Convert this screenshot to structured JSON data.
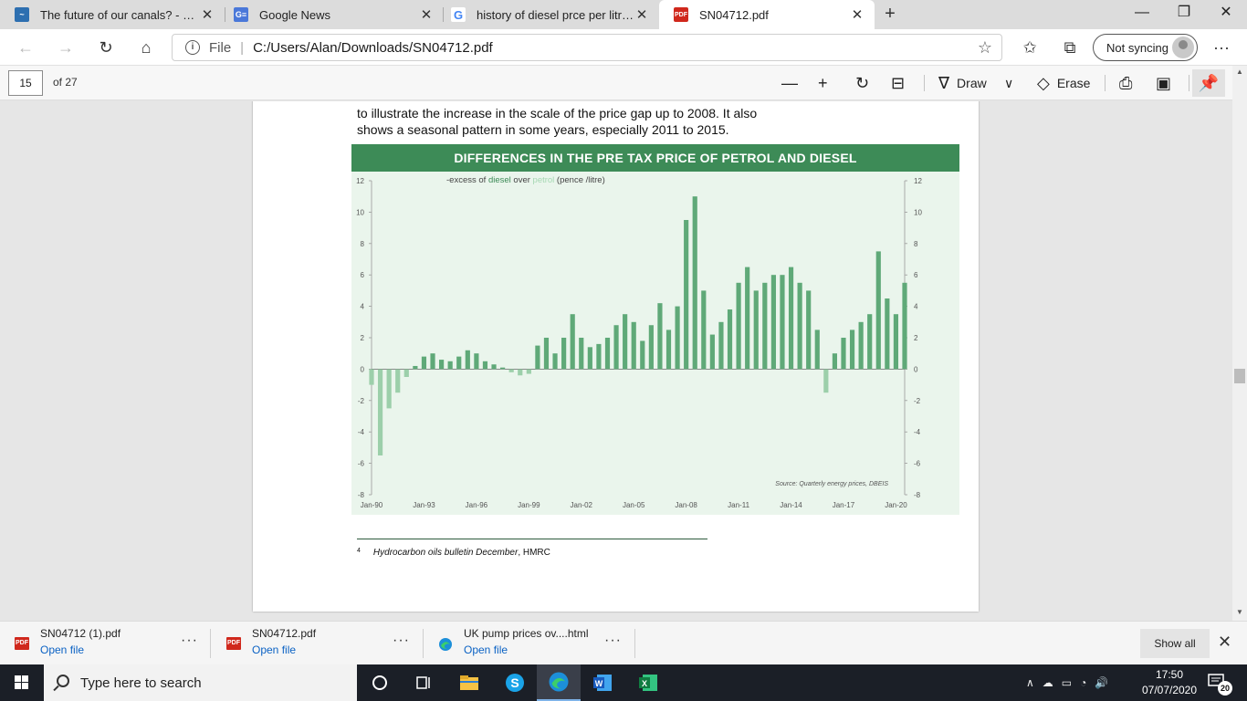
{
  "browser": {
    "tabs": [
      {
        "title": "The future of our canals? - Page",
        "icon": "canal-site-icon",
        "active": false
      },
      {
        "title": "Google News",
        "icon": "google-news-icon",
        "active": false
      },
      {
        "title": "history of diesel prce per litre - G",
        "icon": "google-icon",
        "active": false
      },
      {
        "title": "SN04712.pdf",
        "icon": "pdf-icon",
        "active": true
      }
    ],
    "address": {
      "scheme": "File",
      "url": "C:/Users/Alan/Downloads/SN04712.pdf"
    },
    "profile": {
      "label": "Not syncing"
    }
  },
  "pdf_toolbar": {
    "page_current": "15",
    "page_total": "of 27",
    "draw_label": "Draw",
    "erase_label": "Erase"
  },
  "document": {
    "body_text": "to illustrate the increase in the scale of the price gap up to 2008. It also\nshows a seasonal pattern in some years, especially 2011 to 2015.",
    "chart_title": "DIFFERENCES  IN THE PRE TAX PRICE OF PETROL AND DIESEL",
    "footnote_marker": "4",
    "footnote_italic": "Hydrocarbon oils bulletin December",
    "footnote_rest": ", HMRC"
  },
  "chart_data": {
    "type": "bar",
    "title": "DIFFERENCES  IN THE PRE TAX PRICE OF PETROL AND DIESEL",
    "subtitle_parts": [
      "-excess of ",
      "diesel",
      " over ",
      "petrol",
      " (pence /litre)"
    ],
    "source": "Source: Quarterly energy prices, DBEIS",
    "x_tick_labels": [
      "Jan-90",
      "Jan-93",
      "Jan-96",
      "Jan-99",
      "Jan-02",
      "Jan-05",
      "Jan-08",
      "Jan-11",
      "Jan-14",
      "Jan-17",
      "Jan-20"
    ],
    "y_ticks": [
      12,
      10,
      8,
      6,
      4,
      2,
      0,
      -2,
      -4,
      -6,
      -8
    ],
    "ylim": [
      -8,
      12
    ],
    "x_range": [
      1990.0,
      2020.5
    ],
    "colors": {
      "diesel": "#3d8b57",
      "petrol": "#a6d8b3",
      "positive_bar": "#5fa978",
      "negative_bar": "#9ccfaa"
    },
    "series": [
      {
        "x": [
          1990,
          1990.5,
          1991,
          1991.5,
          1992,
          1992.5,
          1993,
          1993.5,
          1994,
          1994.5,
          1995,
          1995.5,
          1996,
          1996.5,
          1997,
          1997.5,
          1998,
          1998.5,
          1999,
          1999.5,
          2000,
          2000.5,
          2001,
          2001.5,
          2002,
          2002.5,
          2003,
          2003.5,
          2004,
          2004.5,
          2005,
          2005.5,
          2006,
          2006.5,
          2007,
          2007.5,
          2008,
          2008.5,
          2009,
          2009.5,
          2010,
          2010.5,
          2011,
          2011.5,
          2012,
          2012.5,
          2013,
          2013.5,
          2014,
          2014.5,
          2015,
          2015.5,
          2016,
          2016.5,
          2017,
          2017.5,
          2018,
          2018.5,
          2019,
          2019.5,
          2020,
          2020.5
        ],
        "values": [
          -1.0,
          -5.5,
          -2.5,
          -1.5,
          -0.5,
          0.2,
          0.8,
          1.0,
          0.6,
          0.5,
          0.8,
          1.2,
          1.0,
          0.5,
          0.3,
          0.1,
          -0.2,
          -0.4,
          -0.3,
          1.5,
          2.0,
          1.0,
          2.0,
          3.5,
          2.0,
          1.4,
          1.6,
          2.0,
          2.8,
          3.5,
          3.0,
          1.8,
          2.8,
          4.2,
          2.5,
          4.0,
          9.5,
          11.0,
          5.0,
          2.2,
          3.0,
          3.8,
          5.5,
          6.5,
          5.0,
          5.5,
          6.0,
          6.0,
          6.5,
          5.5,
          5.0,
          2.5,
          -1.5,
          1.0,
          2.0,
          2.5,
          3.0,
          3.5,
          7.5,
          4.5,
          3.5,
          5.5
        ]
      }
    ]
  },
  "downloads": [
    {
      "name": "SN04712 (1).pdf",
      "action": "Open file",
      "icon": "pdf-icon"
    },
    {
      "name": "SN04712.pdf",
      "action": "Open file",
      "icon": "pdf-icon"
    },
    {
      "name": "UK pump prices ov....html",
      "action": "Open file",
      "icon": "edge-icon"
    }
  ],
  "downloads_show_all": "Show all",
  "taskbar": {
    "search_placeholder": "Type here to search",
    "time": "17:50",
    "date": "07/07/2020",
    "notification_count": "20"
  }
}
